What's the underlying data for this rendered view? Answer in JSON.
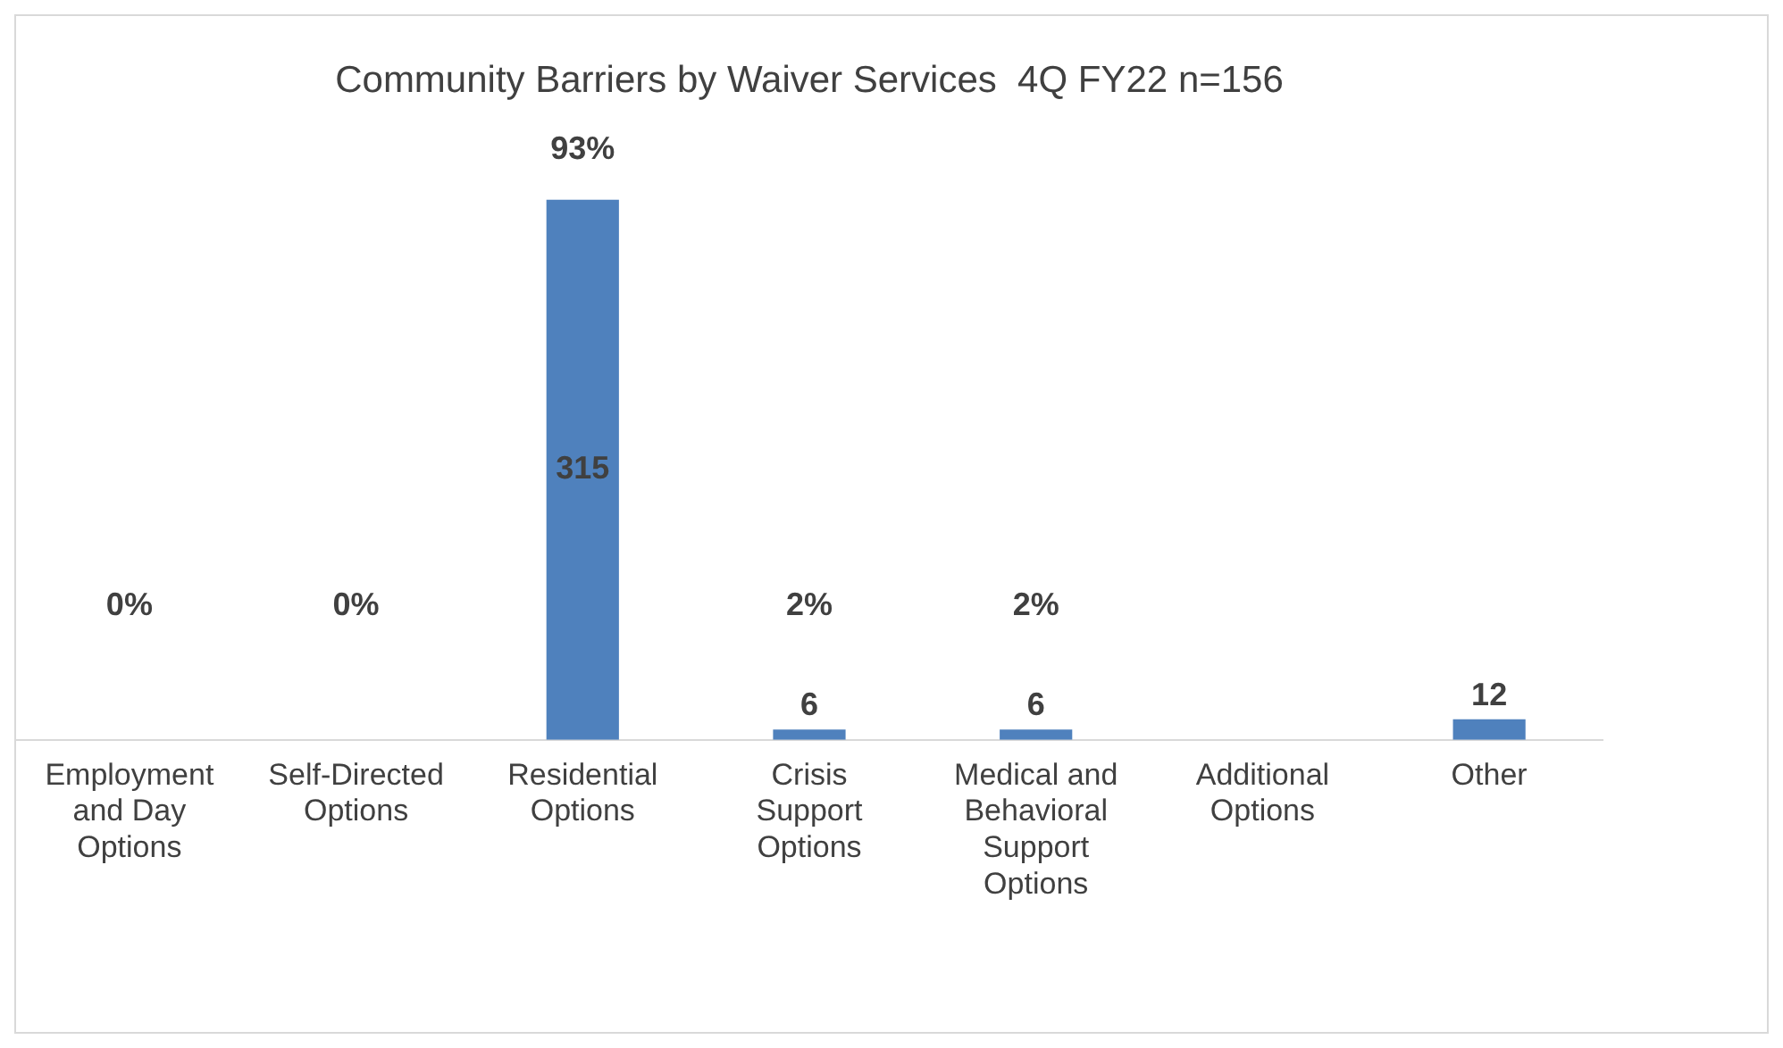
{
  "chart_data": {
    "type": "bar",
    "title": "Community Barriers by Waiver Services  4Q FY22 n=156",
    "categories": [
      "Employment and Day Options",
      "Self-Directed Options",
      "Residential Options",
      "Crisis Support Options",
      "Medical and Behavioral Support Options",
      "Additional Options",
      "Other"
    ],
    "values": [
      0,
      0,
      315,
      6,
      6,
      0,
      12
    ],
    "color": "#4f81bd",
    "value_labels": [
      null,
      null,
      "315",
      "6",
      "6",
      null,
      "12"
    ],
    "annotations": [
      "0%",
      "0%",
      "93%",
      "2%",
      "2%"
    ],
    "tick_labels": "x",
    "grid": false,
    "legend": false
  }
}
